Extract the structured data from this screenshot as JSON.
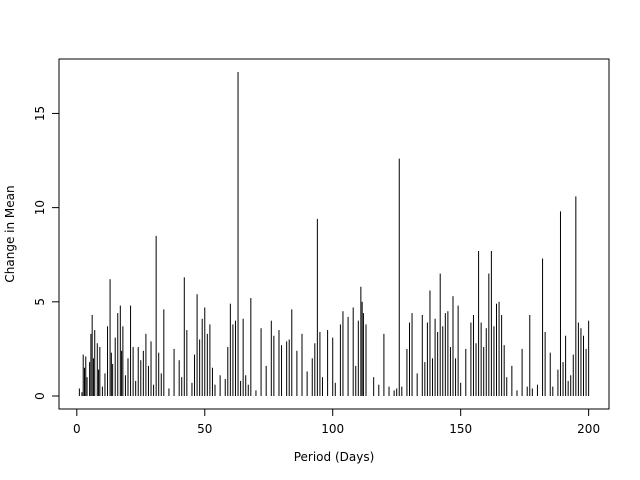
{
  "chart_data": {
    "type": "bar",
    "x_label": "Period (Days)",
    "y_label": "Change in Mean",
    "color": "#000000",
    "xlim": [
      -6.96,
      207.96
    ],
    "ylim": [
      -0.69,
      17.89
    ],
    "xticks": [
      0,
      50,
      100,
      150,
      200
    ],
    "yticks": [
      0,
      5,
      10,
      15
    ],
    "x": [
      1,
      2,
      2.5,
      3,
      3.5,
      4,
      5,
      5.5,
      6,
      6.5,
      7,
      8,
      8.5,
      9,
      10,
      11,
      12,
      13,
      13.5,
      14,
      15,
      16,
      17,
      17.5,
      18,
      19,
      20,
      21,
      22,
      23,
      24,
      25,
      26,
      27,
      28,
      29,
      30,
      31,
      32,
      33,
      34,
      36,
      38,
      40,
      41,
      42,
      43,
      45,
      46,
      47,
      48,
      49,
      50,
      51,
      52,
      53,
      54,
      56,
      58,
      59,
      60,
      61,
      62,
      63,
      64,
      65,
      66,
      67,
      68,
      70,
      72,
      74,
      76,
      77,
      79,
      80,
      82,
      83,
      84,
      86,
      88,
      90,
      92,
      93,
      94,
      95,
      96,
      98,
      100,
      101,
      103,
      104,
      106,
      108,
      109,
      110,
      111,
      111.5,
      112,
      113,
      116,
      118,
      120,
      122,
      124,
      125,
      126,
      127,
      129,
      130,
      131,
      133,
      135,
      136,
      137,
      138,
      139,
      140,
      141,
      142,
      143,
      144,
      145,
      146,
      147,
      148,
      149,
      150,
      152,
      154,
      155,
      156,
      157,
      158,
      159,
      160,
      161,
      162,
      163,
      164,
      165,
      166,
      167,
      168,
      170,
      172,
      174,
      176,
      177,
      178,
      180,
      182,
      183,
      185,
      186,
      188,
      189,
      190,
      191,
      192,
      193,
      194,
      195,
      196,
      197,
      198,
      199,
      200
    ],
    "values": [
      0.4,
      0.2,
      2.2,
      1.5,
      2.1,
      1.0,
      1.8,
      3.3,
      4.3,
      2.0,
      3.5,
      2.8,
      1.4,
      2.6,
      0.5,
      1.2,
      3.7,
      6.2,
      2.3,
      1.7,
      3.1,
      4.4,
      4.8,
      2.4,
      3.7,
      1.1,
      2.0,
      4.8,
      2.6,
      0.8,
      2.6,
      1.9,
      2.4,
      3.3,
      1.6,
      2.9,
      0.6,
      8.5,
      2.3,
      1.2,
      4.6,
      0.4,
      2.5,
      1.9,
      1.0,
      6.3,
      3.5,
      0.7,
      2.2,
      5.4,
      3.0,
      4.1,
      4.7,
      3.3,
      3.8,
      1.5,
      0.6,
      1.1,
      0.9,
      2.6,
      4.9,
      3.8,
      4.0,
      17.2,
      0.8,
      4.1,
      1.1,
      0.6,
      5.2,
      0.3,
      3.6,
      1.6,
      4.0,
      3.2,
      3.5,
      2.7,
      2.9,
      3.0,
      4.6,
      2.4,
      3.3,
      1.3,
      2.0,
      2.8,
      9.4,
      3.4,
      1.0,
      3.5,
      3.1,
      0.7,
      3.8,
      4.5,
      4.2,
      4.7,
      1.6,
      4.0,
      5.8,
      5.0,
      4.4,
      3.8,
      1.0,
      0.6,
      3.3,
      0.5,
      0.3,
      0.4,
      12.6,
      0.5,
      2.5,
      3.9,
      4.4,
      1.2,
      4.3,
      1.8,
      3.9,
      5.6,
      2.0,
      4.1,
      3.4,
      6.5,
      3.7,
      4.4,
      4.5,
      2.6,
      5.3,
      2.0,
      4.8,
      0.7,
      2.5,
      3.9,
      4.3,
      2.8,
      7.7,
      3.9,
      2.6,
      3.6,
      6.5,
      7.7,
      3.7,
      4.9,
      5.0,
      4.3,
      2.7,
      1.0,
      1.6,
      0.3,
      2.5,
      0.5,
      4.3,
      0.4,
      0.6,
      7.3,
      3.4,
      2.3,
      0.5,
      1.4,
      9.8,
      1.8,
      3.2,
      0.8,
      1.1,
      2.2,
      10.6,
      3.9,
      3.6,
      3.2,
      2.5,
      4.0
    ]
  }
}
